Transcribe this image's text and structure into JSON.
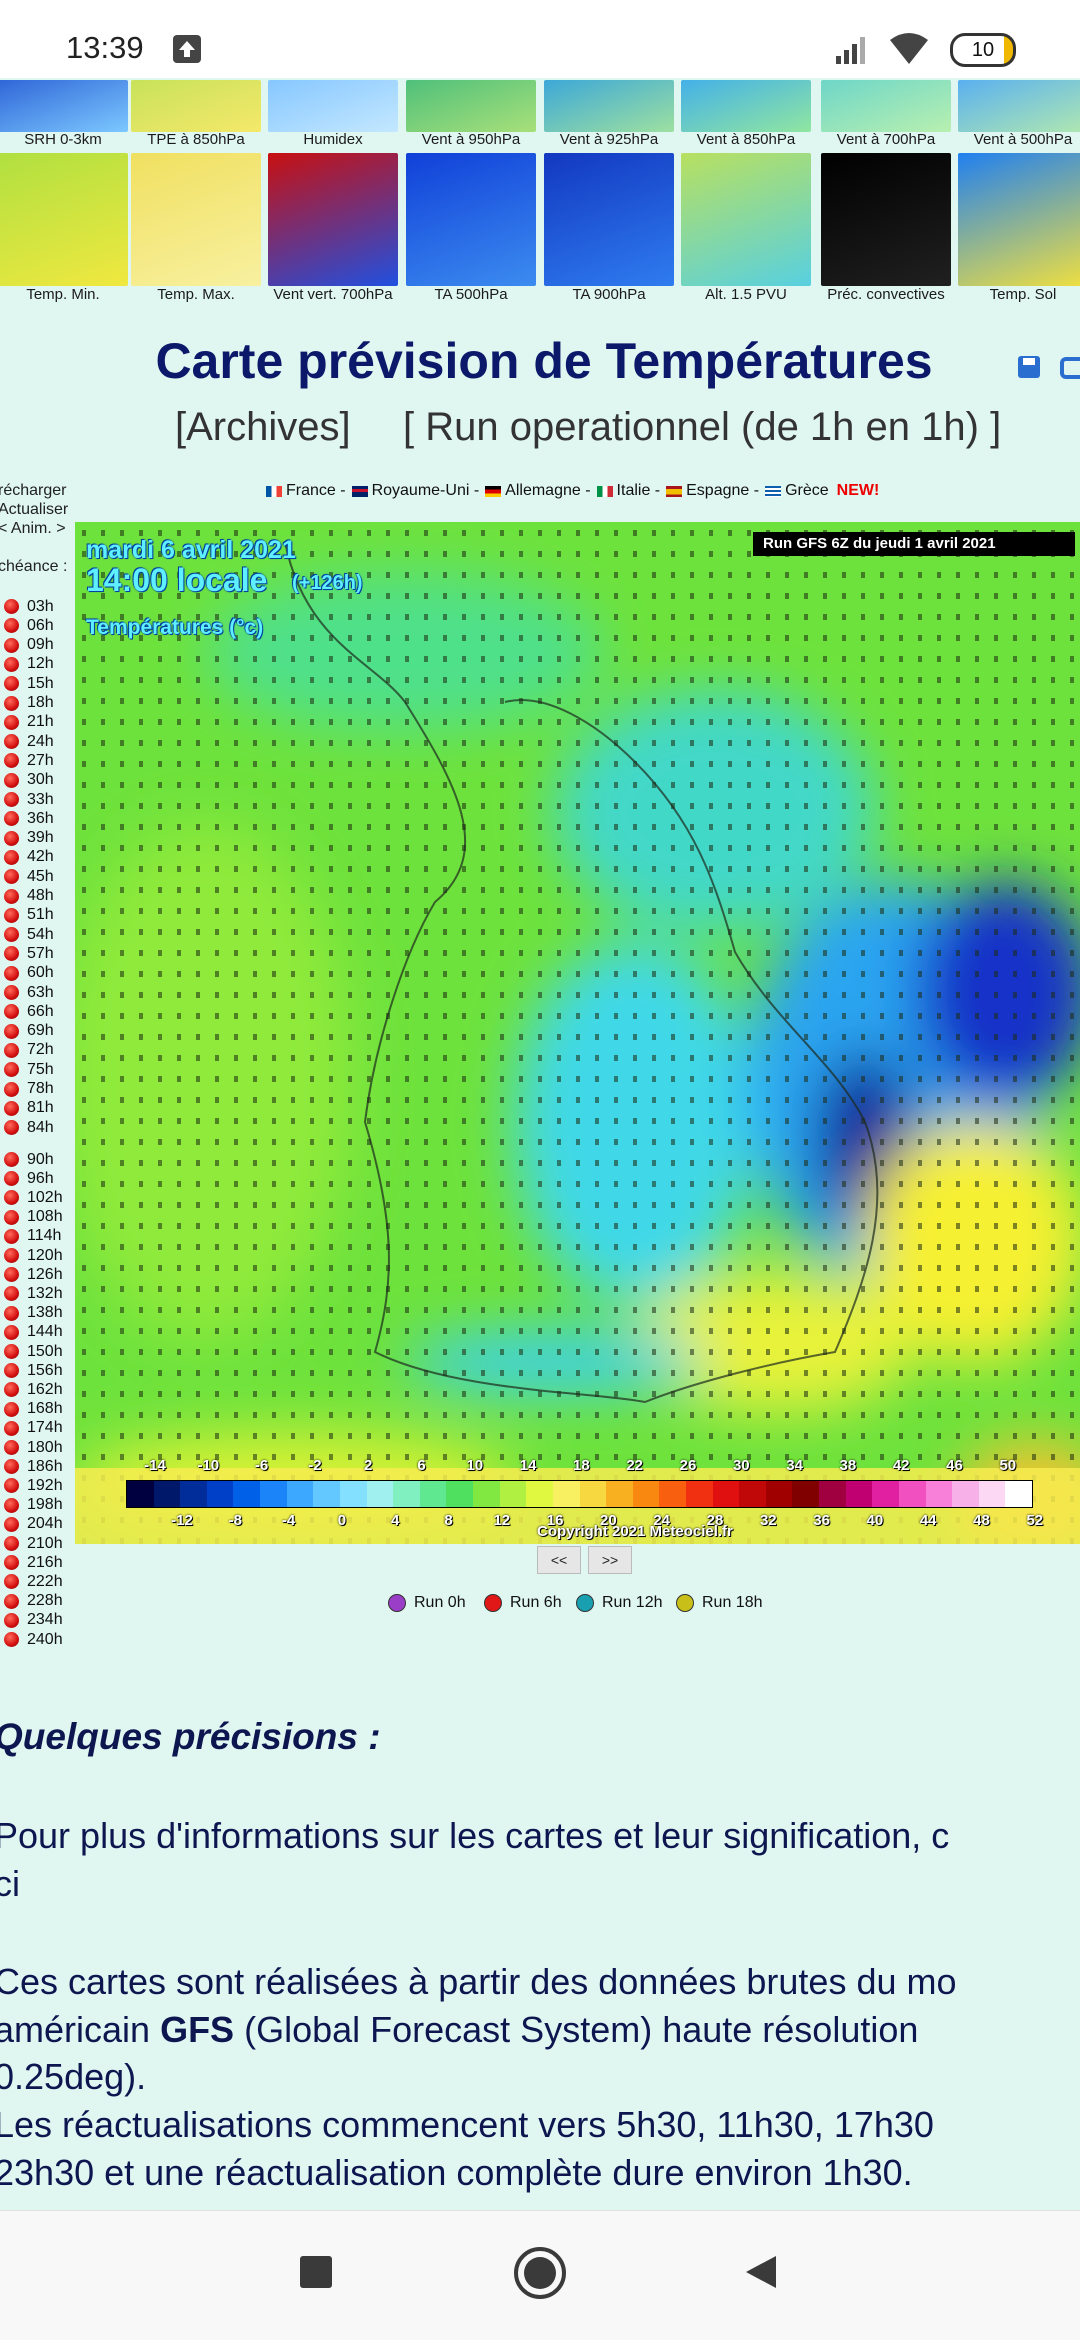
{
  "status_bar": {
    "time": "13:39",
    "battery": "10"
  },
  "thumbnails": {
    "row1": [
      "SRH 0-3km",
      "TPE à 850hPa",
      "Humidex",
      "Vent à 950hPa",
      "Vent à 925hPa",
      "Vent à 850hPa",
      "Vent à 700hPa",
      "Vent à 500hPa"
    ],
    "row2": [
      "Temp. Min.",
      "Temp. Max.",
      "Vent vert. 700hPa",
      "TA 500hPa",
      "TA 900hPa",
      "Alt. 1.5 PVU",
      "Préc. convectives",
      "Temp. Sol"
    ]
  },
  "header": {
    "title": "Carte prévision de Températures",
    "links": [
      "[Archives]",
      "[ Run operationnel (de 1h en 1h) ]"
    ]
  },
  "countries": {
    "items": [
      "France -",
      "Royaume-Uni -",
      "Allemagne -",
      "Italie -",
      "Espagne -",
      "Grèce"
    ],
    "new": "NEW!"
  },
  "sidebar": {
    "controls": [
      "récharger",
      "Actualiser",
      "< Anim. >"
    ],
    "echeance_label": "chéance :",
    "times_3h": [
      "03h",
      "06h",
      "09h",
      "12h",
      "15h",
      "18h",
      "21h",
      "24h",
      "27h",
      "30h",
      "33h",
      "36h",
      "39h",
      "42h",
      "45h",
      "48h",
      "51h",
      "54h",
      "57h",
      "60h",
      "63h",
      "66h",
      "69h",
      "72h",
      "75h",
      "78h",
      "81h",
      "84h"
    ],
    "times_6h": [
      "90h",
      "96h",
      "102h",
      "108h",
      "114h",
      "120h",
      "126h",
      "132h",
      "138h",
      "144h",
      "150h",
      "156h",
      "162h",
      "168h",
      "174h",
      "180h",
      "186h",
      "192h",
      "198h",
      "204h",
      "210h",
      "216h",
      "222h",
      "228h",
      "234h",
      "240h"
    ]
  },
  "map": {
    "date": "mardi 6 avril 2021",
    "time": "14:00 locale",
    "offset": "(+126h)",
    "variable": "Températures (°c)",
    "run": "Run GFS 6Z du jeudi 1 avril 2021",
    "copyright": "Copyright 2021 Meteociel.fr",
    "scale_top": [
      -14,
      -10,
      -6,
      -2,
      2,
      6,
      10,
      14,
      18,
      22,
      26,
      30,
      34,
      38,
      42,
      46,
      50
    ],
    "scale_bottom": [
      -12,
      -8,
      -4,
      0,
      4,
      8,
      12,
      16,
      20,
      24,
      28,
      32,
      36,
      40,
      44,
      48,
      52
    ]
  },
  "nav_buttons": [
    "<<",
    ">>"
  ],
  "runs": [
    "Run 0h",
    "Run 6h",
    "Run 12h",
    "Run 18h"
  ],
  "content": {
    "heading": "Quelques précisions :",
    "para1": [
      "Pour plus d'informations sur les cartes et leur signification, c",
      "ci"
    ],
    "para2_line1": "Ces cartes sont réalisées à partir des données brutes du mo",
    "para2_line2": {
      "before": "américain ",
      "bold": "GFS",
      "after": " (Global Forecast System) haute résolution"
    },
    "para2_rest": [
      "0.25deg).",
      "Les réactualisations commencent vers 5h30, 11h30, 17h30",
      "23h30 et une réactualisation complète dure environ 1h30."
    ]
  }
}
